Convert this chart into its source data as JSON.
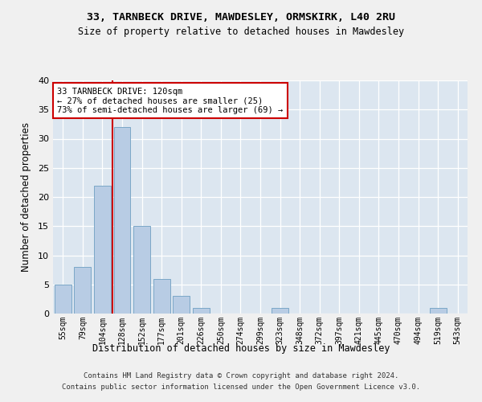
{
  "title1": "33, TARNBECK DRIVE, MAWDESLEY, ORMSKIRK, L40 2RU",
  "title2": "Size of property relative to detached houses in Mawdesley",
  "xlabel": "Distribution of detached houses by size in Mawdesley",
  "ylabel": "Number of detached properties",
  "categories": [
    "55sqm",
    "79sqm",
    "104sqm",
    "128sqm",
    "152sqm",
    "177sqm",
    "201sqm",
    "226sqm",
    "250sqm",
    "274sqm",
    "299sqm",
    "323sqm",
    "348sqm",
    "372sqm",
    "397sqm",
    "421sqm",
    "445sqm",
    "470sqm",
    "494sqm",
    "519sqm",
    "543sqm"
  ],
  "values": [
    5,
    8,
    22,
    32,
    15,
    6,
    3,
    1,
    0,
    0,
    0,
    1,
    0,
    0,
    0,
    0,
    0,
    0,
    0,
    1,
    0
  ],
  "bar_color": "#b8cce4",
  "bar_edge_color": "#7ba7c7",
  "background_color": "#dce6f0",
  "grid_color": "#ffffff",
  "vline_color": "#cc0000",
  "annotation_text": "33 TARNBECK DRIVE: 120sqm\n← 27% of detached houses are smaller (25)\n73% of semi-detached houses are larger (69) →",
  "annotation_box_color": "#ffffff",
  "annotation_box_edge_color": "#cc0000",
  "ylim": [
    0,
    40
  ],
  "yticks": [
    0,
    5,
    10,
    15,
    20,
    25,
    30,
    35,
    40
  ],
  "footnote1": "Contains HM Land Registry data © Crown copyright and database right 2024.",
  "footnote2": "Contains public sector information licensed under the Open Government Licence v3.0.",
  "fig_bg": "#f0f0f0"
}
